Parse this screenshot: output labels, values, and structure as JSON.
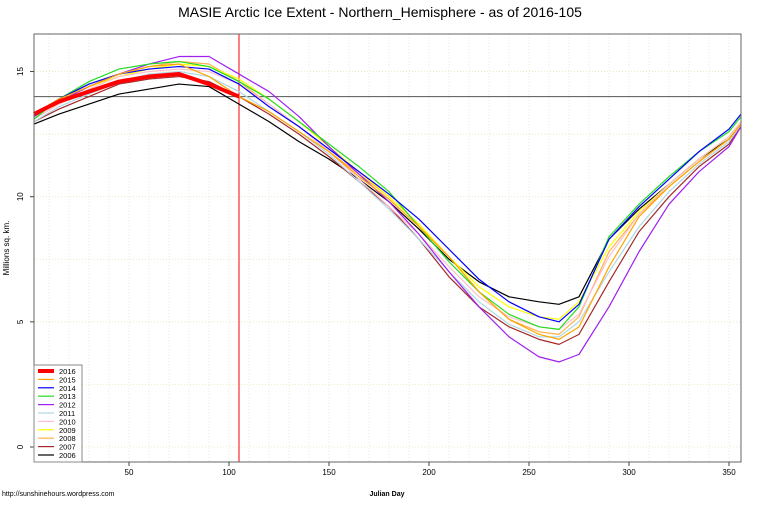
{
  "chart_data": {
    "type": "line",
    "title": "MASIE Arctic Ice Extent - Northern_Hemisphere - as of 2016-105",
    "xlabel": "Julian Day",
    "ylabel": "Millions sq. km.",
    "credit": "http://sunshinehours.wordpress.com",
    "xlim": [
      2.5,
      356
    ],
    "ylim": [
      -0.6,
      16.5
    ],
    "xticks": [
      50,
      100,
      150,
      200,
      250,
      300,
      350
    ],
    "yticks": [
      0,
      5,
      10,
      15
    ],
    "grid": true,
    "legend_position": "bottom-left",
    "reference_hline": 14,
    "reference_vline": 105,
    "reference_vline_color": "#ff0000",
    "x": [
      1,
      15,
      30,
      45,
      60,
      75,
      90,
      105,
      120,
      135,
      150,
      165,
      180,
      195,
      210,
      225,
      240,
      255,
      265,
      275,
      290,
      305,
      320,
      335,
      350,
      365
    ],
    "series": [
      {
        "name": "2016",
        "color": "#ff0000",
        "x": [
          1,
          15,
          30,
          45,
          60,
          75,
          90,
          105
        ],
        "values": [
          13.3,
          13.8,
          14.2,
          14.6,
          14.8,
          14.9,
          14.5,
          14.0
        ]
      },
      {
        "name": "2015",
        "color": "#ffa500",
        "values": [
          13.3,
          13.9,
          14.4,
          14.9,
          15.2,
          15.3,
          14.8,
          14.0,
          13.4,
          12.6,
          11.8,
          10.8,
          9.9,
          8.8,
          7.6,
          6.2,
          5.1,
          4.5,
          4.3,
          4.8,
          7.2,
          9.2,
          10.4,
          11.4,
          12.3,
          12.9
        ]
      },
      {
        "name": "2014",
        "color": "#0000ff",
        "values": [
          13.3,
          13.9,
          14.5,
          14.9,
          15.1,
          15.2,
          15.1,
          14.5,
          13.6,
          12.8,
          11.9,
          11.0,
          10.1,
          9.1,
          7.9,
          6.7,
          5.8,
          5.2,
          5.0,
          5.7,
          8.3,
          9.6,
          10.7,
          11.8,
          12.7,
          13.3
        ]
      },
      {
        "name": "2013",
        "color": "#22dd22",
        "values": [
          13.1,
          13.9,
          14.6,
          15.1,
          15.3,
          15.4,
          15.2,
          14.6,
          13.9,
          13.0,
          12.1,
          11.2,
          10.2,
          8.8,
          7.4,
          6.2,
          5.3,
          4.8,
          4.7,
          5.6,
          8.4,
          9.7,
          10.8,
          11.8,
          12.6,
          13.2
        ]
      },
      {
        "name": "2012",
        "color": "#a020f0",
        "values": [
          13.2,
          13.8,
          14.4,
          14.9,
          15.3,
          15.6,
          15.6,
          14.9,
          14.2,
          13.2,
          12.0,
          10.9,
          9.8,
          8.5,
          7.0,
          5.6,
          4.4,
          3.6,
          3.4,
          3.7,
          5.6,
          7.8,
          9.7,
          11.0,
          12.0,
          12.8
        ]
      },
      {
        "name": "2011",
        "color": "#add8e6",
        "values": [
          13.0,
          13.6,
          14.1,
          14.6,
          14.9,
          15.0,
          14.8,
          14.2,
          13.4,
          12.6,
          11.7,
          10.6,
          9.5,
          8.3,
          7.0,
          5.8,
          4.9,
          4.4,
          4.4,
          5.0,
          7.0,
          8.8,
          10.2,
          11.3,
          12.2,
          12.9
        ]
      },
      {
        "name": "2010",
        "color": "#ffc0cb",
        "values": [
          13.1,
          13.7,
          14.3,
          14.8,
          15.0,
          15.1,
          15.0,
          14.5,
          13.7,
          12.8,
          11.8,
          10.7,
          9.6,
          8.5,
          7.2,
          6.0,
          5.2,
          4.8,
          4.7,
          5.3,
          7.6,
          9.3,
          10.5,
          11.5,
          12.4,
          13.0
        ]
      },
      {
        "name": "2009",
        "color": "#ffff00",
        "values": [
          13.2,
          13.8,
          14.4,
          14.8,
          15.1,
          15.3,
          15.2,
          14.7,
          13.9,
          13.0,
          12.0,
          11.0,
          10.0,
          8.9,
          7.6,
          6.4,
          5.6,
          5.2,
          5.1,
          5.8,
          8.0,
          9.4,
          10.5,
          11.5,
          12.4,
          13.0
        ]
      },
      {
        "name": "2008",
        "color": "#ffb050",
        "values": [
          13.2,
          13.9,
          14.5,
          14.9,
          15.2,
          15.4,
          15.3,
          14.6,
          13.7,
          12.8,
          11.8,
          10.9,
          10.0,
          8.9,
          7.6,
          6.2,
          5.1,
          4.6,
          4.5,
          5.2,
          7.8,
          9.3,
          10.4,
          11.4,
          12.3,
          12.9
        ]
      },
      {
        "name": "2007",
        "color": "#a52a2a",
        "values": [
          13.0,
          13.5,
          14.0,
          14.5,
          14.7,
          14.8,
          14.6,
          14.0,
          13.3,
          12.5,
          11.6,
          10.6,
          9.6,
          8.3,
          6.8,
          5.6,
          4.8,
          4.3,
          4.1,
          4.5,
          6.6,
          8.6,
          10.0,
          11.2,
          12.1,
          12.8
        ]
      },
      {
        "name": "2006",
        "color": "#000000",
        "values": [
          12.9,
          13.3,
          13.7,
          14.1,
          14.3,
          14.5,
          14.4,
          13.7,
          13.0,
          12.2,
          11.5,
          10.7,
          9.8,
          8.7,
          7.5,
          6.6,
          6.0,
          5.8,
          5.7,
          6.0,
          8.3,
          9.5,
          10.5,
          11.5,
          12.3,
          12.9
        ]
      }
    ]
  }
}
